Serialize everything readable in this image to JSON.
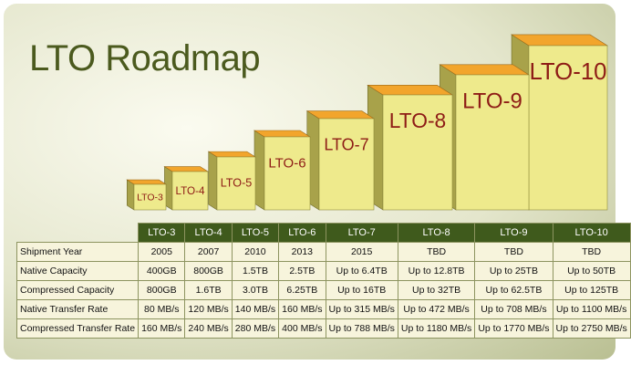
{
  "title": "LTO Roadmap",
  "boxes": [
    "LTO-3",
    "LTO-4",
    "LTO-5",
    "LTO-6",
    "LTO-7",
    "LTO-8",
    "LTO-9",
    "LTO-10"
  ],
  "table": {
    "header": [
      "LTO-3",
      "LTO-4",
      "LTO-5",
      "LTO-6",
      "LTO-7",
      "LTO-8",
      "LTO-9",
      "LTO-10"
    ],
    "rows": [
      [
        "Shipment Year",
        "2005",
        "2007",
        "2010",
        "2013",
        "2015",
        "TBD",
        "TBD",
        "TBD"
      ],
      [
        "Native Capacity",
        "400GB",
        "800GB",
        "1.5TB",
        "2.5TB",
        "Up to 6.4TB",
        "Up to 12.8TB",
        "Up to 25TB",
        "Up to 50TB"
      ],
      [
        "Compressed Capacity",
        "800GB",
        "1.6TB",
        "3.0TB",
        "6.25TB",
        "Up to 16TB",
        "Up to 32TB",
        "Up to 62.5TB",
        "Up to 125TB"
      ],
      [
        "Native Transfer Rate",
        "80 MB/s",
        "120 MB/s",
        "140 MB/s",
        "160 MB/s",
        "Up to 315 MB/s",
        "Up to 472 MB/s",
        "Up to 708 MB/s",
        "Up to 1100 MB/s"
      ],
      [
        "Compressed Transfer Rate",
        "160 MB/s",
        "240 MB/s",
        "280 MB/s",
        "400 MB/s",
        "Up to 788 MB/s",
        "Up to 1180 MB/s",
        "Up to 1770 MB/s",
        "Up to 2750 MB/s"
      ]
    ]
  }
}
